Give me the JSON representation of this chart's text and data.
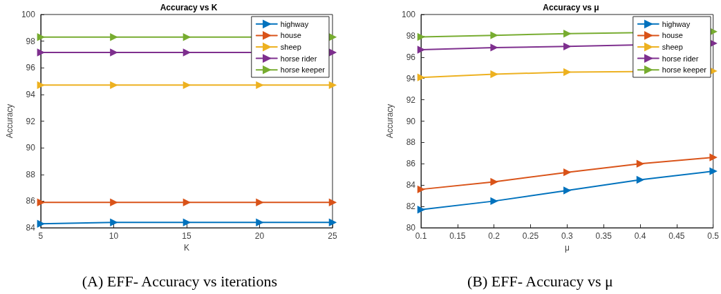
{
  "chart_data": [
    {
      "type": "line",
      "title": "Accuracy vs K",
      "xlabel": "K",
      "ylabel": "Accuracy",
      "x": [
        5,
        10,
        15,
        20,
        25
      ],
      "series": [
        {
          "name": "highway",
          "color": "#0072bd",
          "values": [
            84.3,
            84.4,
            84.4,
            84.4,
            84.4
          ]
        },
        {
          "name": "house",
          "color": "#d95319",
          "values": [
            85.9,
            85.9,
            85.9,
            85.9,
            85.9
          ]
        },
        {
          "name": "sheep",
          "color": "#edb120",
          "values": [
            94.7,
            94.7,
            94.7,
            94.7,
            94.7
          ]
        },
        {
          "name": "horse rider",
          "color": "#7e2f8e",
          "values": [
            97.15,
            97.15,
            97.15,
            null,
            97.15
          ]
        },
        {
          "name": "horse keeper",
          "color": "#77ac30",
          "values": [
            98.3,
            98.3,
            98.3,
            null,
            98.3
          ]
        }
      ],
      "xlim": [
        5,
        25
      ],
      "xticks": [
        5,
        10,
        15,
        20,
        25
      ],
      "ylim": [
        84,
        100
      ],
      "yticks": [
        84,
        86,
        88,
        90,
        92,
        94,
        96,
        98,
        100
      ],
      "grid": false,
      "legend": "top right",
      "marker": "triangle",
      "line_style": "solid",
      "annotations": [
        "(A) EFF- Accuracy vs iterations"
      ]
    },
    {
      "type": "line",
      "title": "Accuracy vs μ",
      "xlabel": "μ",
      "ylabel": "Accuracy",
      "x": [
        0.1,
        0.2,
        0.3,
        0.4,
        0.5
      ],
      "series": [
        {
          "name": "highway",
          "color": "#0072bd",
          "values": [
            81.7,
            82.5,
            83.5,
            84.5,
            85.3
          ]
        },
        {
          "name": "house",
          "color": "#d95319",
          "values": [
            83.6,
            84.3,
            85.2,
            86.0,
            86.6
          ]
        },
        {
          "name": "sheep",
          "color": "#edb120",
          "values": [
            94.1,
            94.4,
            94.6,
            null,
            94.7
          ]
        },
        {
          "name": "horse rider",
          "color": "#7e2f8e",
          "values": [
            96.7,
            96.9,
            97.0,
            null,
            97.3
          ]
        },
        {
          "name": "horse keeper",
          "color": "#77ac30",
          "values": [
            97.9,
            98.05,
            98.2,
            null,
            98.4
          ]
        }
      ],
      "xlim": [
        0.1,
        0.5
      ],
      "xticks": [
        0.1,
        0.15,
        0.2,
        0.25,
        0.3,
        0.35,
        0.4,
        0.45,
        0.5
      ],
      "ylim": [
        80,
        100
      ],
      "yticks": [
        80,
        82,
        84,
        86,
        88,
        90,
        92,
        94,
        96,
        98,
        100
      ],
      "grid": false,
      "legend": "top right",
      "marker": "triangle",
      "line_style": "solid",
      "annotations": [
        "(B) EFF- Accuracy vs μ"
      ]
    }
  ]
}
